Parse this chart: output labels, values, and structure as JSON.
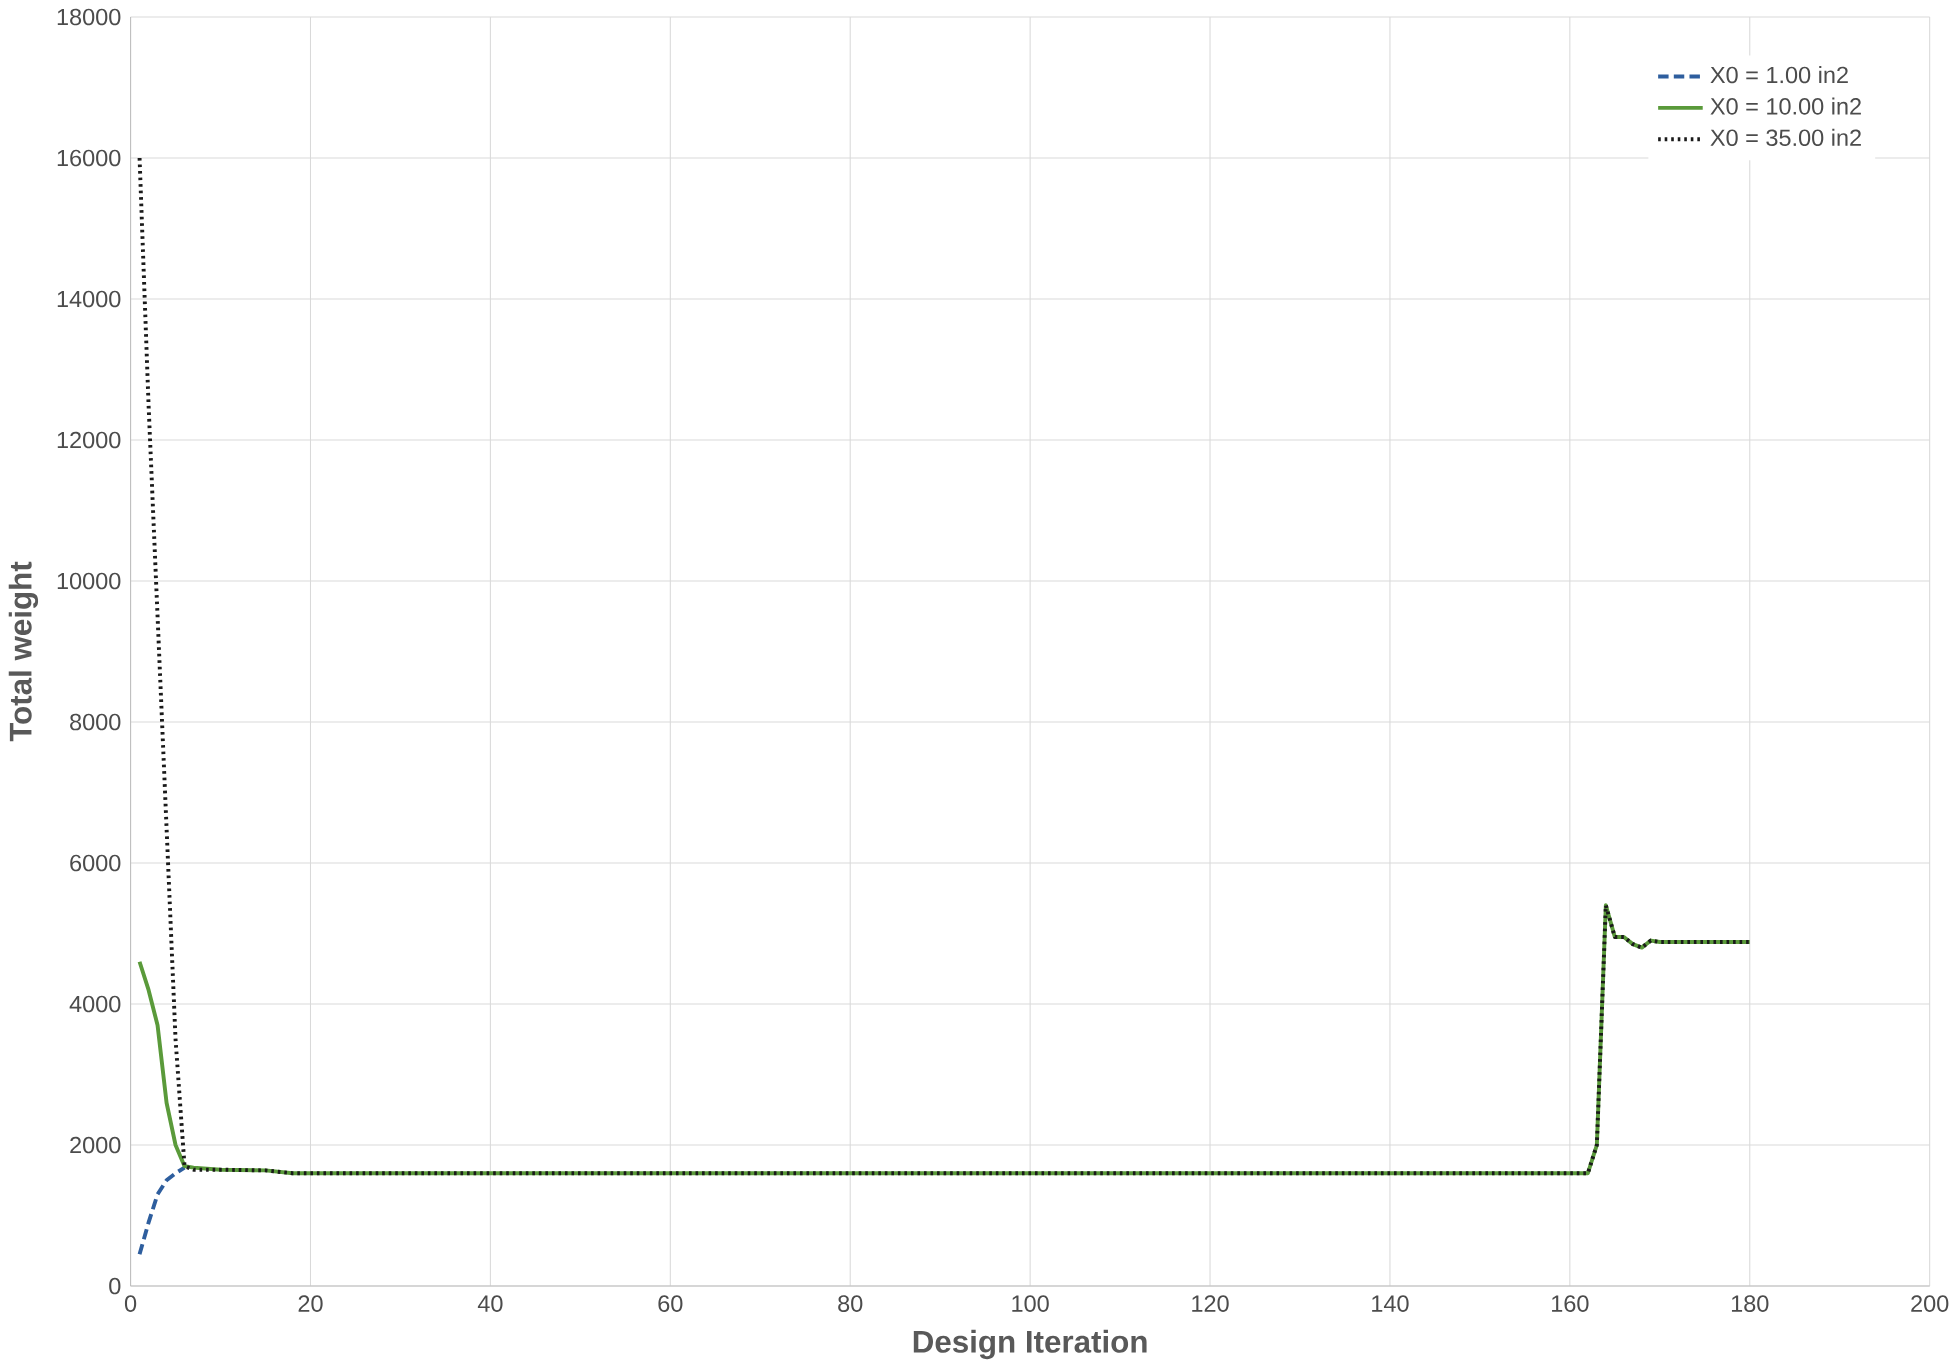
{
  "chart_data": {
    "type": "line",
    "xlabel": "Design Iteration",
    "ylabel": "Total weight",
    "xlim": [
      0,
      200
    ],
    "xticks": [
      0,
      20,
      40,
      60,
      80,
      100,
      120,
      140,
      160,
      180,
      200
    ],
    "ylim": [
      0,
      18000
    ],
    "yticks": [
      0,
      2000,
      4000,
      6000,
      8000,
      10000,
      12000,
      14000,
      16000,
      18000
    ],
    "grid": true,
    "legend": "top right",
    "series": [
      {
        "name": "X0 = 1.00 in2",
        "color": "#2e5e9e",
        "line_style": "dashed",
        "x": [
          1,
          2,
          3,
          4,
          5,
          6
        ],
        "values": [
          450,
          900,
          1300,
          1500,
          1600,
          1680
        ]
      },
      {
        "name": "X0 = 10.00 in2",
        "color": "#5a9a3a",
        "line_style": "solid",
        "x": [
          1,
          2,
          3,
          4,
          5,
          6,
          7,
          10,
          15,
          18,
          40,
          80,
          120,
          162,
          163,
          164,
          165,
          166,
          167,
          168,
          169,
          170,
          180
        ],
        "values": [
          4600,
          4200,
          3700,
          2600,
          2000,
          1700,
          1680,
          1650,
          1640,
          1600,
          1600,
          1600,
          1600,
          1600,
          2000,
          5400,
          4950,
          4950,
          4850,
          4800,
          4900,
          4880,
          4880
        ]
      },
      {
        "name": "X0 = 35.00 in2",
        "color": "#1a1a1a",
        "line_style": "dotted",
        "x": [
          1,
          2,
          3,
          4,
          5,
          6,
          7,
          10,
          15,
          18,
          40,
          80,
          120,
          162,
          163,
          164,
          165,
          166,
          167,
          168,
          169,
          170,
          180
        ],
        "values": [
          16000,
          12500,
          9500,
          6500,
          3500,
          1700,
          1650,
          1650,
          1640,
          1600,
          1600,
          1600,
          1600,
          1600,
          2000,
          5400,
          4950,
          4950,
          4850,
          4800,
          4900,
          4880,
          4880
        ]
      }
    ]
  }
}
